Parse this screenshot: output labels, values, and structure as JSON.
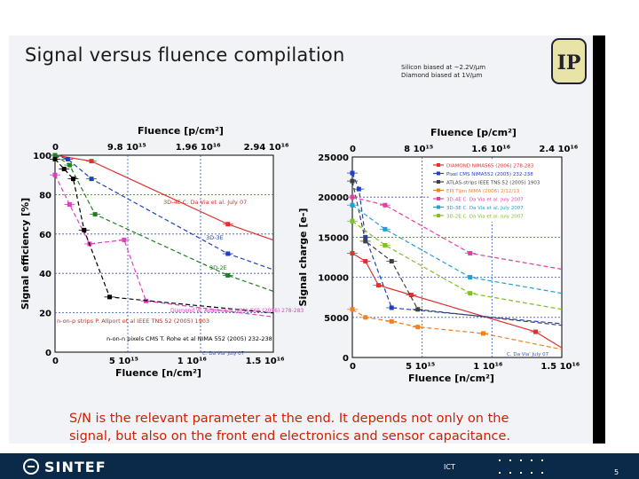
{
  "slide": {
    "title": "Signal versus fluence compilation",
    "note_lines": [
      "Silicon biased at ~2.2V/µm",
      "Diamond biased at 1V/µm"
    ],
    "logo_text": "IP",
    "footer_text": [
      "S/N is the relevant parameter at the end. It depends not only on the",
      "signal, but also on the front end electronics and sensor capacitance."
    ],
    "footer_brand": "SINTEF",
    "footer_unit": "ICT",
    "page_number": "5",
    "colors": {
      "accent_red": "#cc2200",
      "footer_bg": "#0b2a4a"
    }
  },
  "chart_data": [
    {
      "type": "scatter",
      "top_axis_label": "Fluence [p/cm²]",
      "top_ticks": [
        "0",
        "9.8 10¹⁵",
        "1.96 10¹⁶",
        "2.94 10¹⁶"
      ],
      "xlabel": "Fluence [n/cm²]",
      "x_ticks": [
        "0",
        "5 10¹⁵",
        "1 10¹⁶",
        "1.5 10¹⁶"
      ],
      "ylabel": "Signal efficiency [%]",
      "y_ticks": [
        "0",
        "20",
        "40",
        "60",
        "80",
        "100"
      ],
      "annotations": [
        "3D-4E C. Da Via et al. July 07",
        "3D-3E",
        "3D-2E",
        "Diamond W. Adam et al NIMA 565 (2006) 278-283",
        "n-on-p strips P. Allport et al IEEE TNS 52 (2005) 1903",
        "n-on-n pixels CMS T. Rohe et al NIMA 552 (2005) 232-238",
        "C. Da Via' July 07"
      ],
      "series": [
        {
          "color": "#e03030",
          "x": [
            0,
            0.2,
            0.95
          ],
          "y": [
            100,
            97,
            65
          ]
        },
        {
          "color": "#2040c0",
          "x": [
            0,
            0.07,
            0.2,
            0.95
          ],
          "y": [
            100,
            98,
            88,
            50
          ]
        },
        {
          "color": "#208020",
          "x": [
            0,
            0.08,
            0.22,
            0.95
          ],
          "y": [
            100,
            95,
            70,
            39
          ]
        },
        {
          "color": "#e040c0",
          "x": [
            0,
            0.08,
            0.19,
            0.38,
            0.5
          ],
          "y": [
            90,
            75,
            55,
            57,
            26
          ]
        },
        {
          "color": "#000000",
          "x": [
            0,
            0.05,
            0.1,
            0.16,
            0.3
          ],
          "y": [
            98,
            93,
            88,
            62,
            28
          ]
        }
      ]
    },
    {
      "type": "scatter",
      "top_axis_label": "Fluence [p/cm²]",
      "top_ticks": [
        "0",
        "8 10¹⁵",
        "1.6 10¹⁶",
        "2.4 10¹⁶"
      ],
      "xlabel": "Fluence [n/cm²]",
      "x_ticks": [
        "0",
        "5 10¹⁵",
        "1 10¹⁶",
        "1.5 10¹⁶"
      ],
      "ylabel": "Signal charge [e-]",
      "y_ticks": [
        "0",
        "5000",
        "10000",
        "15000",
        "20000",
        "25000"
      ],
      "legend": [
        "DIAMOND NIMA565 (2006) 278-283",
        "Pixel CMS NIMA552 (2005) 232-238",
        "ATLAS-strips IEEE TNS 52 (2005) 1903",
        "EPI Tijen NIMA (2006) 2/12/13",
        "3D-4E C. Da Via et al. July 2007",
        "3D-3E C. Da Via et al. July 2007",
        "3D-2E C. Da Via et al. July 2007"
      ],
      "annotation": "C. Da Via' July 07",
      "series": [
        {
          "name": "DIAMOND NIMA565 (2006) 278-283",
          "color": "#e03030",
          "x": [
            0,
            0.1,
            0.2,
            0.45,
            1.4
          ],
          "y": [
            13000,
            12000,
            9000,
            7800,
            3200
          ]
        },
        {
          "name": "Pixel CMS NIMA552 (2005) 232-238",
          "color": "#2040c0",
          "x": [
            0,
            0.05,
            0.1,
            0.3
          ],
          "y": [
            23000,
            21000,
            15000,
            6200
          ]
        },
        {
          "name": "ATLAS-strips IEEE TNS 52 (2005) 1903",
          "color": "#404040",
          "x": [
            0,
            0.1,
            0.3,
            0.5
          ],
          "y": [
            22000,
            14500,
            12000,
            6000
          ]
        },
        {
          "name": "EPI Tijen NIMA (2006) 2/12/13",
          "color": "#f08020",
          "x": [
            0,
            0.1,
            0.3,
            0.5,
            1.0
          ],
          "y": [
            6000,
            5000,
            4500,
            3800,
            3000
          ]
        },
        {
          "name": "3D-4E C. Da Via et al. July 2007",
          "color": "#e040a0",
          "x": [
            0,
            0.25,
            0.9
          ],
          "y": [
            20000,
            19000,
            13000
          ]
        },
        {
          "name": "3D-3E C. Da Via et al. July 2007",
          "color": "#20a0d0",
          "x": [
            0,
            0.25,
            0.9
          ],
          "y": [
            19000,
            16000,
            10000
          ]
        },
        {
          "name": "3D-2E C. Da Via et al. July 2007",
          "color": "#80c020",
          "x": [
            0,
            0.25,
            0.9
          ],
          "y": [
            17000,
            14000,
            8000
          ]
        }
      ]
    }
  ]
}
